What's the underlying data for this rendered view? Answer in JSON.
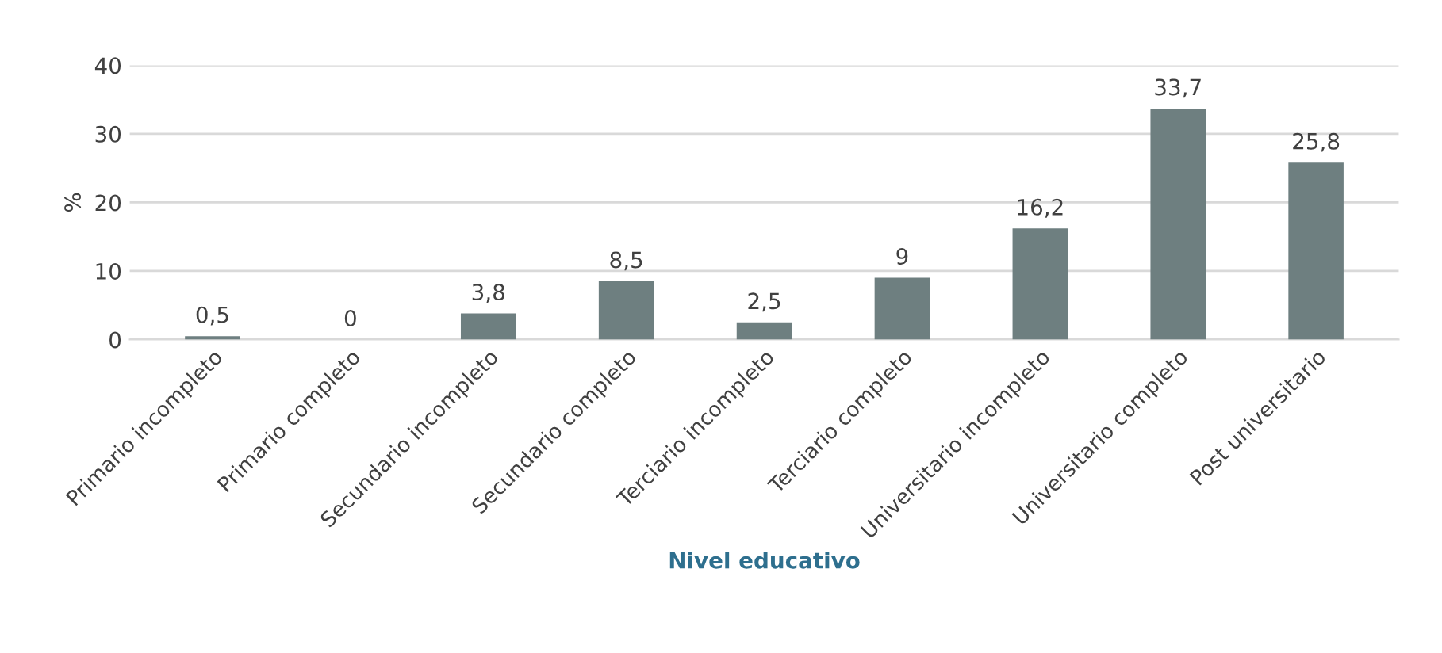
{
  "chart_data": {
    "type": "bar",
    "xlabel": "Nivel educativo",
    "ylabel": "%",
    "categories": [
      "Primario incompleto",
      "Primario completo",
      "Secundario incompleto",
      "Secundario completo",
      "Terciario incompleto",
      "Terciario completo",
      "Universitario incompleto",
      "Universitario completo",
      "Post universitario"
    ],
    "values": [
      0.5,
      0,
      3.8,
      8.5,
      2.5,
      9,
      16.2,
      33.7,
      25.8
    ],
    "value_labels": [
      "0,5",
      "0",
      "3,8",
      "8,5",
      "2,5",
      "9",
      "16,2",
      "33,7",
      "25,8"
    ],
    "color": "#6e7f80",
    "ylim": [
      0,
      40
    ],
    "yticks": [
      0,
      10,
      20,
      30,
      40
    ],
    "grid": "y"
  }
}
